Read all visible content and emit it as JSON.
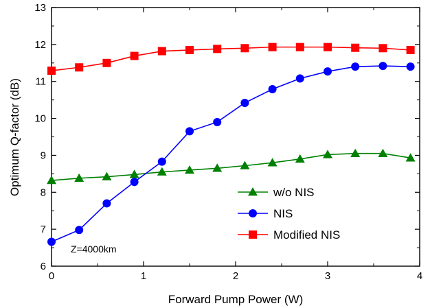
{
  "chart_data": {
    "type": "line",
    "xlabel": "Forward Pump Power (W)",
    "ylabel": "Optimum Q-factor (dB)",
    "xlim": [
      0,
      4
    ],
    "ylim": [
      6,
      13
    ],
    "xticks": [
      0,
      1,
      2,
      3,
      4
    ],
    "yticks": [
      6,
      7,
      8,
      9,
      10,
      11,
      12,
      13
    ],
    "grid": false,
    "legend_position": "lower-right",
    "annotation": "Z=4000km",
    "x": [
      0,
      0.3,
      0.6,
      0.9,
      1.2,
      1.5,
      1.8,
      2.1,
      2.4,
      2.7,
      3.0,
      3.3,
      3.6,
      3.9
    ],
    "series": [
      {
        "name": "w/o NIS",
        "color": "#008000",
        "marker": "triangle",
        "values": [
          8.32,
          8.38,
          8.42,
          8.48,
          8.55,
          8.6,
          8.65,
          8.72,
          8.8,
          8.9,
          9.02,
          9.05,
          9.05,
          8.93
        ]
      },
      {
        "name": "NIS",
        "color": "#0000ff",
        "marker": "circle",
        "values": [
          6.66,
          6.98,
          7.7,
          8.28,
          8.83,
          9.65,
          9.9,
          10.42,
          10.79,
          11.08,
          11.27,
          11.4,
          11.42,
          11.4
        ]
      },
      {
        "name": "Modified NIS",
        "color": "#ff0000",
        "marker": "square",
        "values": [
          11.29,
          11.38,
          11.5,
          11.69,
          11.82,
          11.85,
          11.88,
          11.9,
          11.93,
          11.93,
          11.93,
          11.91,
          11.9,
          11.85
        ]
      }
    ]
  }
}
